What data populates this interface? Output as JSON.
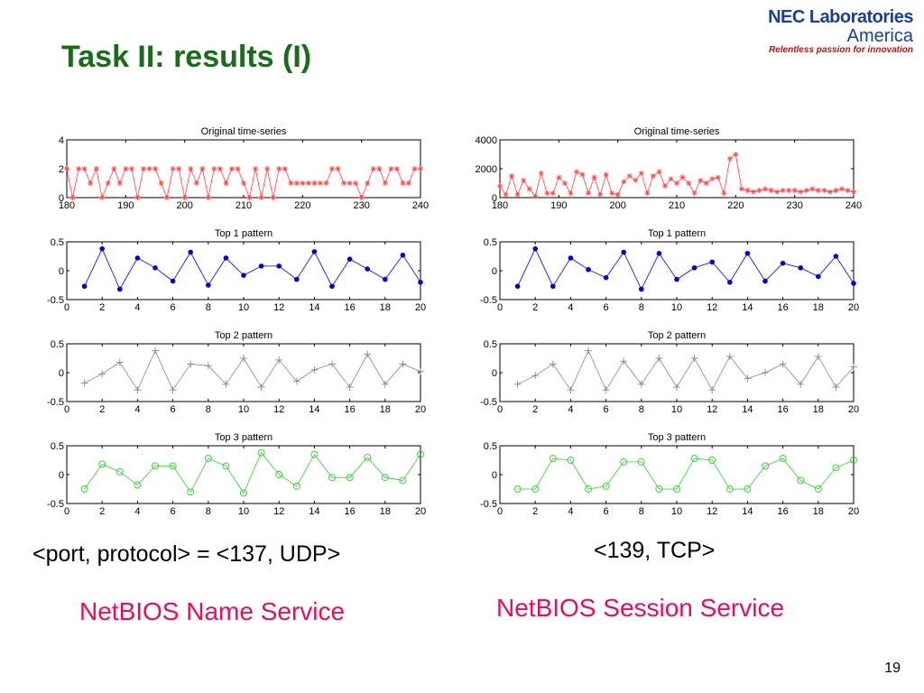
{
  "slide": {
    "title": "Task II: results (I)",
    "page_number": "19"
  },
  "logo": {
    "line1": "NEC Laboratories",
    "line2": "America",
    "tagline": "Relentless passion for innovation"
  },
  "captions": {
    "left_port": "<port, protocol> = <137, UDP>",
    "left_service": "NetBIOS Name Service",
    "right_port": "<139, TCP>",
    "right_service": "NetBIOS Session Service"
  },
  "colors": {
    "title": "#1a6b1a",
    "service": "#e0105a",
    "red_series": "#ff4444",
    "blue_series": "#0000cc",
    "gray_series": "#888888",
    "green_series": "#33cc33"
  },
  "chart_data": [
    {
      "type": "line",
      "panel": "left",
      "title": "Original time-series",
      "x": [
        180,
        181,
        182,
        183,
        184,
        185,
        186,
        187,
        188,
        189,
        190,
        191,
        192,
        193,
        194,
        195,
        196,
        197,
        198,
        199,
        200,
        201,
        202,
        203,
        204,
        205,
        206,
        207,
        208,
        209,
        210,
        211,
        212,
        213,
        214,
        215,
        216,
        217,
        218,
        219,
        220,
        221,
        222,
        223,
        224,
        225,
        226,
        227,
        228,
        229,
        230,
        231,
        232,
        233,
        234,
        235,
        236,
        237,
        238,
        239,
        240
      ],
      "xlim": [
        180,
        240
      ],
      "xticks": [
        180,
        190,
        200,
        210,
        220,
        230,
        240
      ],
      "ylim": [
        0,
        4
      ],
      "yticks": [
        0,
        2,
        4
      ],
      "series": [
        {
          "values": [
            2,
            0,
            2,
            2,
            1,
            2,
            0,
            1,
            2,
            1,
            2,
            2,
            0,
            2,
            2,
            2,
            1,
            0,
            2,
            2,
            0,
            2,
            1,
            2,
            0,
            2,
            2,
            1,
            2,
            2,
            1,
            0,
            2,
            0,
            2,
            0,
            2,
            2,
            1,
            1,
            1,
            1,
            1,
            1,
            1,
            2,
            2,
            1,
            1,
            1,
            0,
            1,
            2,
            2,
            1,
            2,
            2,
            1,
            1,
            2,
            2
          ],
          "color": "#ff4444",
          "marker": "star"
        }
      ]
    },
    {
      "type": "line",
      "panel": "left",
      "title": "Top 1 pattern",
      "x": [
        1,
        2,
        3,
        4,
        5,
        6,
        7,
        8,
        9,
        10,
        11,
        12,
        13,
        14,
        15,
        16,
        17,
        18,
        19,
        20
      ],
      "xlim": [
        0,
        20
      ],
      "xticks": [
        0,
        2,
        4,
        6,
        8,
        10,
        12,
        14,
        16,
        18,
        20
      ],
      "ylim": [
        -0.5,
        0.5
      ],
      "yticks": [
        -0.5,
        0,
        0.5
      ],
      "series": [
        {
          "values": [
            -0.27,
            0.38,
            -0.32,
            0.22,
            0.05,
            -0.18,
            0.32,
            -0.25,
            0.22,
            -0.08,
            0.08,
            0.08,
            -0.15,
            0.33,
            -0.27,
            0.2,
            0.03,
            -0.15,
            0.27,
            -0.2
          ],
          "color": "#0000cc",
          "marker": "dot"
        }
      ]
    },
    {
      "type": "line",
      "panel": "left",
      "title": "Top 2 pattern",
      "x": [
        1,
        2,
        3,
        4,
        5,
        6,
        7,
        8,
        9,
        10,
        11,
        12,
        13,
        14,
        15,
        16,
        17,
        18,
        19,
        20
      ],
      "xlim": [
        0,
        20
      ],
      "xticks": [
        0,
        2,
        4,
        6,
        8,
        10,
        12,
        14,
        16,
        18,
        20
      ],
      "ylim": [
        -0.5,
        0.5
      ],
      "yticks": [
        -0.5,
        0,
        0.5
      ],
      "series": [
        {
          "values": [
            -0.18,
            -0.02,
            0.18,
            -0.3,
            0.38,
            -0.3,
            0.15,
            0.12,
            -0.2,
            0.25,
            -0.25,
            0.22,
            -0.15,
            0.05,
            0.15,
            -0.25,
            0.32,
            -0.2,
            0.15,
            0.02
          ],
          "color": "#888888",
          "marker": "plus"
        }
      ]
    },
    {
      "type": "line",
      "panel": "left",
      "title": "Top 3 pattern",
      "x": [
        1,
        2,
        3,
        4,
        5,
        6,
        7,
        8,
        9,
        10,
        11,
        12,
        13,
        14,
        15,
        16,
        17,
        18,
        19,
        20
      ],
      "xlim": [
        0,
        20
      ],
      "xticks": [
        0,
        2,
        4,
        6,
        8,
        10,
        12,
        14,
        16,
        18,
        20
      ],
      "ylim": [
        -0.5,
        0.5
      ],
      "yticks": [
        -0.5,
        0,
        0.5
      ],
      "series": [
        {
          "values": [
            -0.25,
            0.18,
            0.05,
            -0.18,
            0.15,
            0.15,
            -0.3,
            0.28,
            0.15,
            -0.32,
            0.38,
            0,
            -0.2,
            0.35,
            -0.05,
            -0.05,
            0.3,
            -0.05,
            -0.1,
            0.35
          ],
          "color": "#33cc33",
          "marker": "circle"
        }
      ]
    },
    {
      "type": "line",
      "panel": "right",
      "title": "Original time-series",
      "x": [
        180,
        181,
        182,
        183,
        184,
        185,
        186,
        187,
        188,
        189,
        190,
        191,
        192,
        193,
        194,
        195,
        196,
        197,
        198,
        199,
        200,
        201,
        202,
        203,
        204,
        205,
        206,
        207,
        208,
        209,
        210,
        211,
        212,
        213,
        214,
        215,
        216,
        217,
        218,
        219,
        220,
        221,
        222,
        223,
        224,
        225,
        226,
        227,
        228,
        229,
        230,
        231,
        232,
        233,
        234,
        235,
        236,
        237,
        238,
        239,
        240
      ],
      "xlim": [
        180,
        240
      ],
      "xticks": [
        180,
        190,
        200,
        210,
        220,
        230,
        240
      ],
      "ylim": [
        0,
        4000
      ],
      "yticks": [
        0,
        2000,
        4000
      ],
      "series": [
        {
          "values": [
            800,
            200,
            1500,
            200,
            1200,
            600,
            100,
            1700,
            300,
            300,
            1400,
            1000,
            300,
            1800,
            1600,
            300,
            1400,
            200,
            1600,
            300,
            200,
            1100,
            1500,
            1200,
            1700,
            300,
            1500,
            1800,
            800,
            1300,
            1000,
            1400,
            1000,
            300,
            1200,
            1000,
            1300,
            1400,
            300,
            2700,
            3000,
            600,
            500,
            400,
            500,
            600,
            500,
            400,
            500,
            500,
            500,
            400,
            500,
            600,
            500,
            500,
            400,
            500,
            600,
            500,
            400
          ],
          "color": "#ff4444",
          "marker": "star"
        }
      ]
    },
    {
      "type": "line",
      "panel": "right",
      "title": "Top 1 pattern",
      "x": [
        1,
        2,
        3,
        4,
        5,
        6,
        7,
        8,
        9,
        10,
        11,
        12,
        13,
        14,
        15,
        16,
        17,
        18,
        19,
        20
      ],
      "xlim": [
        0,
        20
      ],
      "xticks": [
        0,
        2,
        4,
        6,
        8,
        10,
        12,
        14,
        16,
        18,
        20
      ],
      "ylim": [
        -0.5,
        0.5
      ],
      "yticks": [
        -0.5,
        0,
        0.5
      ],
      "series": [
        {
          "values": [
            -0.27,
            0.38,
            -0.27,
            0.22,
            0.02,
            -0.12,
            0.32,
            -0.32,
            0.3,
            -0.15,
            0.05,
            0.15,
            -0.2,
            0.3,
            -0.18,
            0.13,
            0.05,
            -0.1,
            0.25,
            -0.22
          ],
          "color": "#0000cc",
          "marker": "dot"
        }
      ]
    },
    {
      "type": "line",
      "panel": "right",
      "title": "Top 2 pattern",
      "x": [
        1,
        2,
        3,
        4,
        5,
        6,
        7,
        8,
        9,
        10,
        11,
        12,
        13,
        14,
        15,
        16,
        17,
        18,
        19,
        20
      ],
      "xlim": [
        0,
        20
      ],
      "xticks": [
        0,
        2,
        4,
        6,
        8,
        10,
        12,
        14,
        16,
        18,
        20
      ],
      "ylim": [
        -0.5,
        0.5
      ],
      "yticks": [
        -0.5,
        0,
        0.5
      ],
      "series": [
        {
          "values": [
            -0.2,
            -0.05,
            0.15,
            -0.3,
            0.38,
            -0.3,
            0.2,
            -0.2,
            0.25,
            -0.25,
            0.25,
            -0.3,
            0.28,
            -0.1,
            0,
            0.15,
            -0.2,
            0.28,
            -0.25,
            0.1
          ],
          "color": "#888888",
          "marker": "plus"
        }
      ]
    },
    {
      "type": "line",
      "panel": "right",
      "title": "Top 3 pattern",
      "x": [
        1,
        2,
        3,
        4,
        5,
        6,
        7,
        8,
        9,
        10,
        11,
        12,
        13,
        14,
        15,
        16,
        17,
        18,
        19,
        20
      ],
      "xlim": [
        0,
        20
      ],
      "xticks": [
        0,
        2,
        4,
        6,
        8,
        10,
        12,
        14,
        16,
        18,
        20
      ],
      "ylim": [
        -0.5,
        0.5
      ],
      "yticks": [
        -0.5,
        0,
        0.5
      ],
      "series": [
        {
          "values": [
            -0.25,
            -0.25,
            0.28,
            0.25,
            -0.25,
            -0.2,
            0.22,
            0.22,
            -0.25,
            -0.25,
            0.28,
            0.25,
            -0.25,
            -0.25,
            0.15,
            0.28,
            -0.1,
            -0.25,
            0.12,
            0.25
          ],
          "color": "#33cc33",
          "marker": "circle"
        }
      ]
    }
  ]
}
